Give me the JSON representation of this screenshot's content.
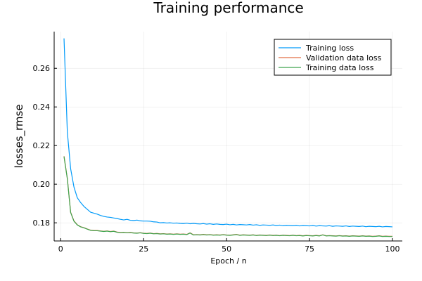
{
  "chart_data": {
    "type": "line",
    "title": "Training performance",
    "xlabel": "Epoch / n",
    "ylabel": "losses_rmse",
    "xlim": [
      -1.97,
      102.97
    ],
    "ylim": [
      0.1706,
      0.279
    ],
    "xticks": [
      0,
      25,
      50,
      75,
      100
    ],
    "yticks": [
      0.18,
      0.2,
      0.22,
      0.24,
      0.26
    ],
    "xtick_labels": [
      "0",
      "25",
      "50",
      "75",
      "100"
    ],
    "ytick_labels": [
      "0.18",
      "0.20",
      "0.22",
      "0.24",
      "0.26"
    ],
    "grid": true,
    "legend_position": "top-right",
    "series": [
      {
        "name": "Training loss",
        "color": "#009af9",
        "x": [
          1,
          2,
          3,
          4,
          5,
          6,
          7,
          8,
          9,
          10,
          11,
          12,
          13,
          14,
          15,
          16,
          17,
          18,
          19,
          20,
          21,
          22,
          23,
          24,
          25,
          26,
          27,
          28,
          29,
          30,
          31,
          32,
          33,
          34,
          35,
          36,
          37,
          38,
          39,
          40,
          41,
          42,
          43,
          44,
          45,
          46,
          47,
          48,
          49,
          50,
          51,
          52,
          53,
          54,
          55,
          56,
          57,
          58,
          59,
          60,
          61,
          62,
          63,
          64,
          65,
          66,
          67,
          68,
          69,
          70,
          71,
          72,
          73,
          74,
          75,
          76,
          77,
          78,
          79,
          80,
          81,
          82,
          83,
          84,
          85,
          86,
          87,
          88,
          89,
          90,
          91,
          92,
          93,
          94,
          95,
          96,
          97,
          98,
          99,
          100
        ],
        "values": [
          0.2755,
          0.227,
          0.208,
          0.1985,
          0.193,
          0.1905,
          0.1885,
          0.187,
          0.1855,
          0.185,
          0.1845,
          0.1838,
          0.1833,
          0.183,
          0.1828,
          0.1825,
          0.1822,
          0.1818,
          0.1815,
          0.1818,
          0.1813,
          0.1812,
          0.1814,
          0.181,
          0.1809,
          0.1809,
          0.1808,
          0.1805,
          0.1804,
          0.18,
          0.1801,
          0.1799,
          0.18,
          0.1798,
          0.1799,
          0.1797,
          0.1796,
          0.1798,
          0.1795,
          0.1797,
          0.1795,
          0.1794,
          0.1796,
          0.1793,
          0.1795,
          0.1792,
          0.1794,
          0.1792,
          0.1791,
          0.1793,
          0.179,
          0.1792,
          0.1789,
          0.1791,
          0.179,
          0.1789,
          0.1791,
          0.1788,
          0.179,
          0.1787,
          0.1789,
          0.1788,
          0.1787,
          0.1789,
          0.1786,
          0.1788,
          0.1785,
          0.1787,
          0.1786,
          0.1785,
          0.1787,
          0.1784,
          0.1786,
          0.1785,
          0.1784,
          0.1786,
          0.1783,
          0.1785,
          0.1784,
          0.1783,
          0.1785,
          0.1782,
          0.1784,
          0.1783,
          0.1782,
          0.1784,
          0.1781,
          0.1783,
          0.1782,
          0.1781,
          0.1783,
          0.178,
          0.1782,
          0.1781,
          0.178,
          0.1782,
          0.1779,
          0.1781,
          0.178,
          0.1779
        ]
      },
      {
        "name": "Validation data loss",
        "color": "#e26f46",
        "x": [
          1,
          2,
          3,
          4,
          5,
          6,
          7,
          8,
          9,
          10,
          11,
          12,
          13,
          14,
          15,
          16,
          17,
          18,
          19,
          20,
          21,
          22,
          23,
          24,
          25,
          26,
          27,
          28,
          29,
          30,
          31,
          32,
          33,
          34,
          35,
          36,
          37,
          38,
          39,
          40,
          41,
          42,
          43,
          44,
          45,
          46,
          47,
          48,
          49,
          50,
          51,
          52,
          53,
          54,
          55,
          56,
          57,
          58,
          59,
          60,
          61,
          62,
          63,
          64,
          65,
          66,
          67,
          68,
          69,
          70,
          71,
          72,
          73,
          74,
          75,
          76,
          77,
          78,
          79,
          80,
          81,
          82,
          83,
          84,
          85,
          86,
          87,
          88,
          89,
          90,
          91,
          92,
          93,
          94,
          95,
          96,
          97,
          98,
          99,
          100
        ],
        "values": [
          0.2145,
          0.203,
          0.1855,
          0.181,
          0.179,
          0.178,
          0.1775,
          0.1768,
          0.1762,
          0.176,
          0.176,
          0.1758,
          0.1756,
          0.1758,
          0.1755,
          0.1757,
          0.1752,
          0.175,
          0.1751,
          0.1749,
          0.175,
          0.1748,
          0.1747,
          0.1749,
          0.1746,
          0.1745,
          0.1747,
          0.1744,
          0.1745,
          0.1743,
          0.1744,
          0.1742,
          0.1743,
          0.1741,
          0.1743,
          0.1741,
          0.1742,
          0.174,
          0.1748,
          0.1738,
          0.1739,
          0.1738,
          0.174,
          0.1738,
          0.1739,
          0.1737,
          0.1738,
          0.1737,
          0.1739,
          0.1737,
          0.1736,
          0.1738,
          0.174,
          0.1736,
          0.1738,
          0.1737,
          0.1736,
          0.1738,
          0.1735,
          0.1737,
          0.1736,
          0.1735,
          0.1737,
          0.1735,
          0.1736,
          0.1734,
          0.1736,
          0.1735,
          0.1734,
          0.1736,
          0.1734,
          0.1735,
          0.1733,
          0.1735,
          0.1734,
          0.1733,
          0.1735,
          0.1733,
          0.1738,
          0.1733,
          0.1734,
          0.1733,
          0.1732,
          0.1734,
          0.1732,
          0.1733,
          0.1731,
          0.1733,
          0.1732,
          0.1731,
          0.1733,
          0.1731,
          0.1732,
          0.173,
          0.1731,
          0.1733,
          0.173,
          0.1731,
          0.173,
          0.173
        ]
      },
      {
        "name": "Training data loss",
        "color": "#3da44d",
        "x": [
          1,
          2,
          3,
          4,
          5,
          6,
          7,
          8,
          9,
          10,
          11,
          12,
          13,
          14,
          15,
          16,
          17,
          18,
          19,
          20,
          21,
          22,
          23,
          24,
          25,
          26,
          27,
          28,
          29,
          30,
          31,
          32,
          33,
          34,
          35,
          36,
          37,
          38,
          39,
          40,
          41,
          42,
          43,
          44,
          45,
          46,
          47,
          48,
          49,
          50,
          51,
          52,
          53,
          54,
          55,
          56,
          57,
          58,
          59,
          60,
          61,
          62,
          63,
          64,
          65,
          66,
          67,
          68,
          69,
          70,
          71,
          72,
          73,
          74,
          75,
          76,
          77,
          78,
          79,
          80,
          81,
          82,
          83,
          84,
          85,
          86,
          87,
          88,
          89,
          90,
          91,
          92,
          93,
          94,
          95,
          96,
          97,
          98,
          99,
          100
        ],
        "values": [
          0.2143,
          0.2028,
          0.1853,
          0.1808,
          0.1789,
          0.1779,
          0.1774,
          0.1767,
          0.1761,
          0.1759,
          0.1759,
          0.1757,
          0.1755,
          0.1757,
          0.1754,
          0.1756,
          0.1751,
          0.1749,
          0.175,
          0.1748,
          0.1749,
          0.1747,
          0.1746,
          0.1748,
          0.1745,
          0.1744,
          0.1746,
          0.1743,
          0.1744,
          0.1742,
          0.1743,
          0.1741,
          0.1742,
          0.174,
          0.1742,
          0.174,
          0.1741,
          0.1739,
          0.1747,
          0.1737,
          0.1738,
          0.1737,
          0.1739,
          0.1737,
          0.1738,
          0.1736,
          0.1737,
          0.1736,
          0.1738,
          0.1736,
          0.1735,
          0.1737,
          0.1739,
          0.1735,
          0.1737,
          0.1736,
          0.1735,
          0.1737,
          0.1734,
          0.1736,
          0.1735,
          0.1734,
          0.1736,
          0.1734,
          0.1735,
          0.1733,
          0.1735,
          0.1734,
          0.1733,
          0.1735,
          0.1733,
          0.1734,
          0.1732,
          0.1734,
          0.1733,
          0.1732,
          0.1734,
          0.1732,
          0.1737,
          0.1732,
          0.1733,
          0.1732,
          0.1731,
          0.1733,
          0.1731,
          0.1732,
          0.173,
          0.1732,
          0.1731,
          0.173,
          0.1732,
          0.173,
          0.1731,
          0.1729,
          0.173,
          0.1732,
          0.1729,
          0.173,
          0.1729,
          0.1729
        ]
      }
    ]
  }
}
